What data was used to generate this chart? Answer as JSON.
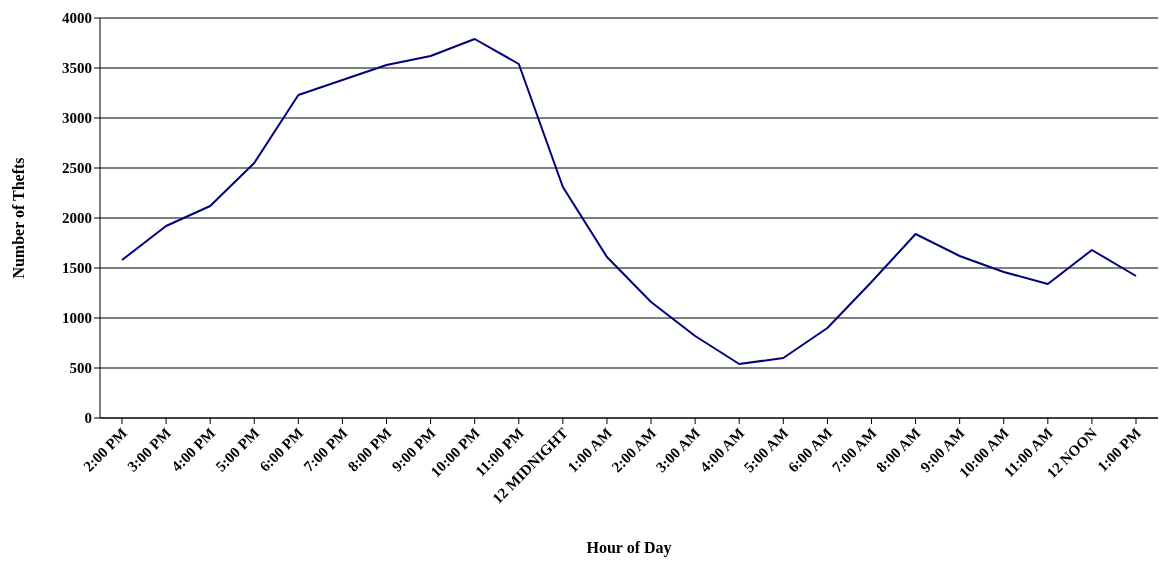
{
  "chart_data": {
    "type": "line",
    "xlabel": "Hour of Day",
    "ylabel": "Number of Thefts",
    "categories": [
      "2:00 PM",
      "3:00 PM",
      "4:00 PM",
      "5:00 PM",
      "6:00 PM",
      "7:00 PM",
      "8:00 PM",
      "9:00 PM",
      "10:00 PM",
      "11:00 PM",
      "12 MIDNIGHT",
      "1:00 AM",
      "2:00 AM",
      "3:00 AM",
      "4:00 AM",
      "5:00 AM",
      "6:00 AM",
      "7:00 AM",
      "8:00 AM",
      "9:00 AM",
      "10:00 AM",
      "11:00 AM",
      "12 NOON",
      "1:00 PM"
    ],
    "series": [
      {
        "color": "#000080",
        "values": [
          1580,
          1920,
          2120,
          2550,
          3230,
          3380,
          3530,
          3620,
          3790,
          3540,
          2310,
          1610,
          1160,
          820,
          540,
          600,
          900,
          1360,
          1840,
          1620,
          1460,
          1340,
          1680,
          1420
        ]
      }
    ],
    "ylim": [
      0,
      4000
    ],
    "yticks": [
      0,
      500,
      1000,
      1500,
      2000,
      2500,
      3000,
      3500,
      4000
    ],
    "grid": "y",
    "legend": false,
    "marker": "none",
    "line_style": "solid"
  }
}
